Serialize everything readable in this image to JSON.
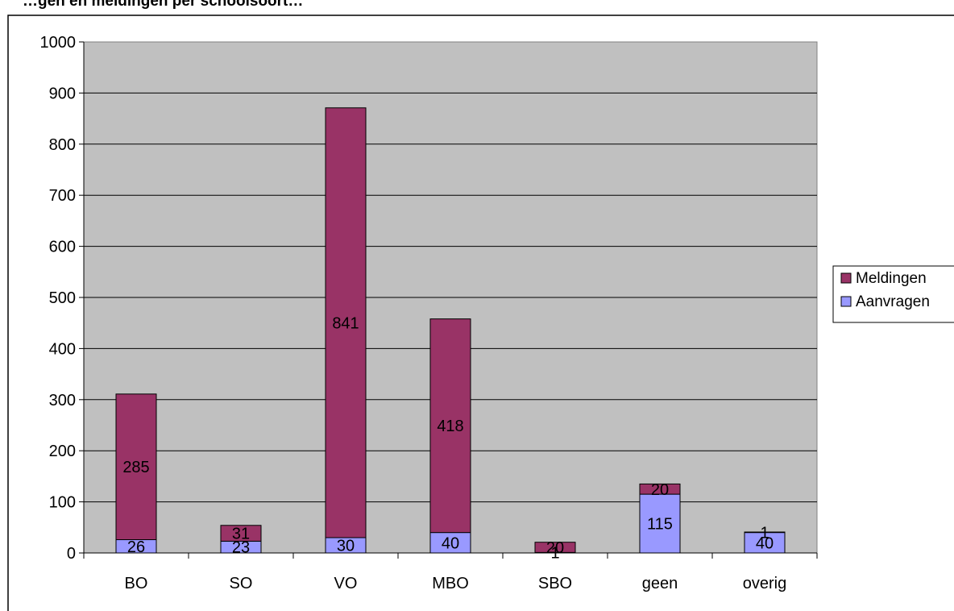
{
  "chart_data": {
    "type": "bar",
    "stacked": true,
    "title": "…gen en meldingen per schoolsoort…",
    "categories": [
      "BO",
      "SO",
      "VO",
      "MBO",
      "SBO",
      "geen",
      "overig"
    ],
    "series": [
      {
        "name": "Aanvragen",
        "color": "#9999ff",
        "values": [
          26,
          23,
          30,
          40,
          1,
          115,
          40
        ],
        "labels": [
          "26",
          "23",
          "30",
          "40",
          "1",
          "115",
          "40"
        ]
      },
      {
        "name": "Meldingen",
        "color": "#993366",
        "values": [
          285,
          31,
          841,
          418,
          20,
          20,
          1
        ],
        "labels": [
          "285",
          "31",
          "841",
          "418",
          "20",
          "20",
          "1"
        ]
      }
    ],
    "yticks": [
      "0",
      "100",
      "200",
      "300",
      "400",
      "500",
      "600",
      "700",
      "800",
      "900",
      "1000"
    ],
    "ylim": [
      0,
      1000
    ],
    "grid": true,
    "plot_background": "#c0c0c0",
    "legend_position": "right",
    "legend": [
      "Meldingen",
      "Aanvragen"
    ]
  }
}
